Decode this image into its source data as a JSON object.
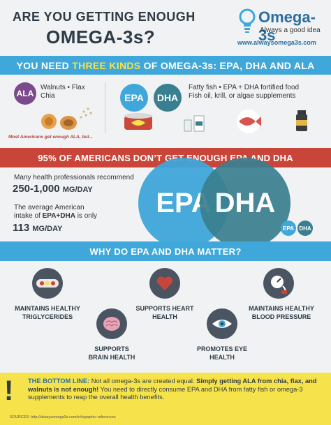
{
  "header": {
    "title_line1": "ARE YOU GETTING ENOUGH",
    "title_line2": "OMEGA-3s?",
    "brand_name": "Omega-3s",
    "brand_tagline": "Always a good idea",
    "brand_url": "www.alwaysomega3s.com"
  },
  "kinds": {
    "banner_prefix": "YOU NEED ",
    "banner_highlight": "THREE KINDS",
    "banner_suffix": " OF OMEGA-3s: EPA, DHA AND ALA",
    "ala_badge": "ALA",
    "ala_sources_line1": "Walnuts • Flax",
    "ala_sources_line2": "Chia",
    "epa_badge": "EPA",
    "dha_badge": "DHA",
    "epa_dha_sources_line1": "Fatty fish • EPA + DHA fortified food",
    "epa_dha_sources_line2": "Fish oil, krill, or algae supplements",
    "ala_note": "Most Americans get enough ALA, but..."
  },
  "deficit": {
    "banner": "95% OF AMERICANS DON’T GET ENOUGH EPA AND DHA",
    "recommend_text": "Many health professionals recommend",
    "recommend_amount": "250-1,000",
    "recommend_unit": "MG/DAY",
    "average_line1": "The average American",
    "average_line2_prefix": "intake of ",
    "average_line2_bold": "EPA+DHA",
    "average_line2_suffix": " is only",
    "average_amount": "113",
    "average_unit": "MG/DAY",
    "big_epa": "EPA",
    "big_dha": "DHA",
    "small_epa": "EPA",
    "small_dha": "DHA"
  },
  "matter": {
    "banner": "WHY DO EPA AND DHA MATTER?",
    "benefits": [
      {
        "line1": "MAINTAINS HEALTHY",
        "line2": "TRIGLYCERIDES"
      },
      {
        "line1": "SUPPORTS HEART",
        "line2": "HEALTH"
      },
      {
        "line1": "MAINTAINS HEALTHY",
        "line2": "BLOOD PRESSURE"
      },
      {
        "line1": "SUPPORTS",
        "line2": "BRAIN HEALTH"
      },
      {
        "line1": "PROMOTES EYE",
        "line2": "HEALTH"
      }
    ]
  },
  "bottom_line": {
    "label": "THE BOTTOM LINE:",
    "text1": " Not all omega-3s are created equal. ",
    "bold1": "Simply getting ALA from chia, flax, and walnuts is not enough!",
    "text2": " You need to directly consume EPA and DHA from fatty fish or omega-3 supplements to reap the overall health benefits.",
    "source_label": "SOURCES:",
    "source_url": "http://alwaysomega3s.com/infographic-references"
  },
  "colors": {
    "blue": "#3fa7d9",
    "teal": "#3a7f8f",
    "purple": "#7a4a8c",
    "red": "#c9453a",
    "yellow": "#f6e34b",
    "dark": "#2f3b45"
  }
}
